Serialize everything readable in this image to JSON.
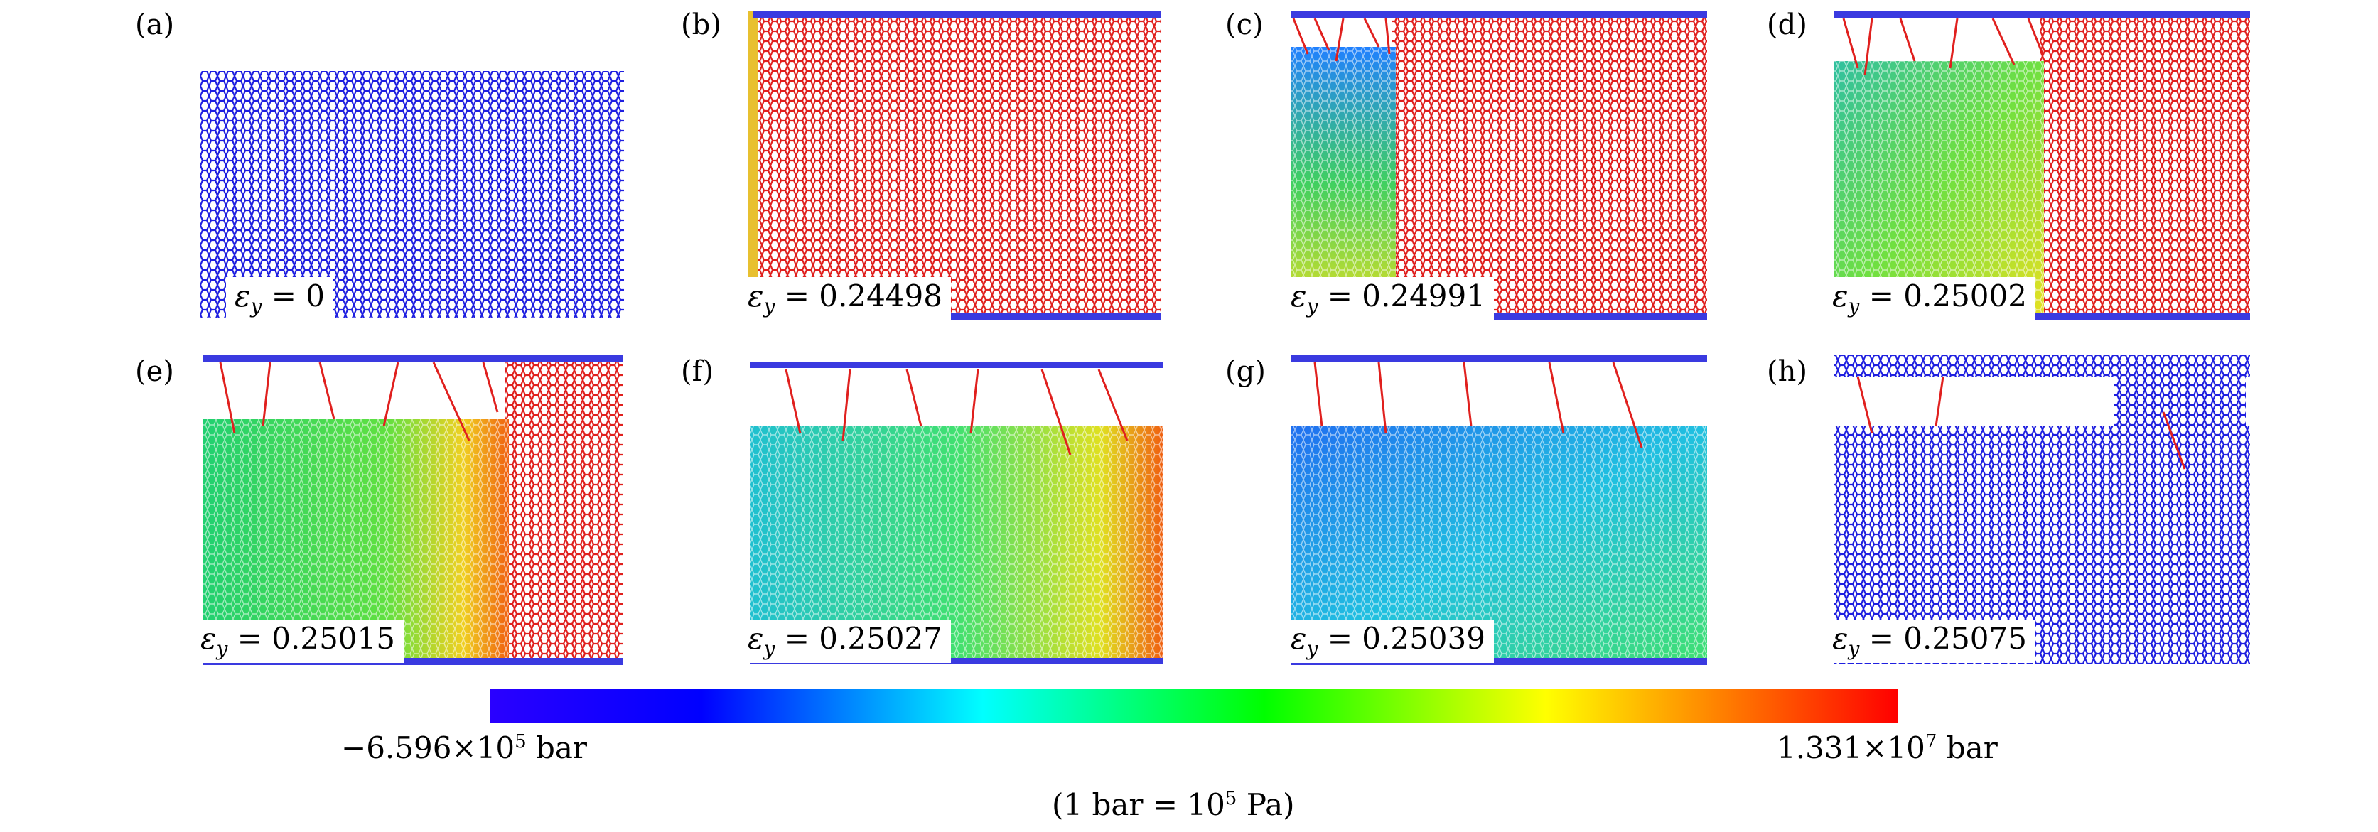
{
  "panels": [
    {
      "label": "(a)",
      "strain_var": "ε",
      "strain_sub": "y",
      "strain_value": "= 0"
    },
    {
      "label": "(b)",
      "strain_var": "ε",
      "strain_sub": "y",
      "strain_value": "= 0.24498"
    },
    {
      "label": "(c)",
      "strain_var": "ε",
      "strain_sub": "y",
      "strain_value": "= 0.24991"
    },
    {
      "label": "(d)",
      "strain_var": "ε",
      "strain_sub": "y",
      "strain_value": "= 0.25002"
    },
    {
      "label": "(e)",
      "strain_var": "ε",
      "strain_sub": "y",
      "strain_value": "= 0.25015"
    },
    {
      "label": "(f)",
      "strain_var": "ε",
      "strain_sub": "y",
      "strain_value": "= 0.25027"
    },
    {
      "label": "(g)",
      "strain_var": "ε",
      "strain_sub": "y",
      "strain_value": "= 0.25039"
    },
    {
      "label": "(h)",
      "strain_var": "ε",
      "strain_sub": "y",
      "strain_value": "= 0.25075"
    }
  ],
  "colorbar": {
    "min_mantissa": "−6.596",
    "min_base": "×10",
    "min_exp": "5",
    "min_unit": "bar",
    "max_mantissa": "1.331",
    "max_base": "×10",
    "max_exp": "7",
    "max_unit": "bar",
    "colors": [
      "#2a00ff",
      "#0000ff",
      "#00ffff",
      "#00ff00",
      "#ffff00",
      "#ff0000"
    ]
  },
  "note": {
    "prefix": "(1 bar = 10",
    "exp": "5",
    "suffix": " Pa)"
  },
  "colors": {
    "blue": "#1a1aff",
    "red": "#e0201e",
    "lattice_blue": "#2222dd"
  }
}
